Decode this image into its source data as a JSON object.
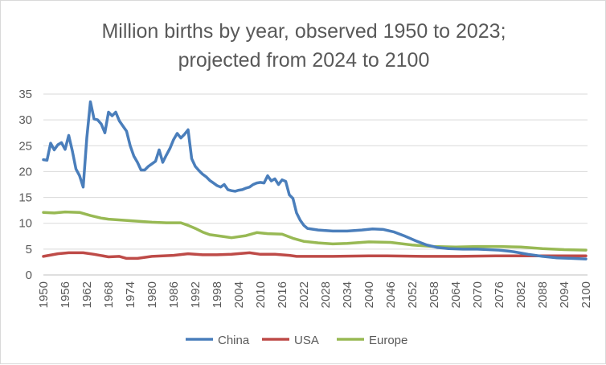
{
  "chart_data": {
    "type": "line",
    "title_lines": [
      "Million births by year, observed 1950 to 2023;",
      "projected from 2024 to 2100"
    ],
    "xlabel": "",
    "ylabel": "",
    "xlim": [
      1950,
      2100
    ],
    "ylim": [
      0,
      35
    ],
    "yticks": [
      0,
      5,
      10,
      15,
      20,
      25,
      30,
      35
    ],
    "xticks": [
      1950,
      1956,
      1962,
      1968,
      1974,
      1980,
      1986,
      1992,
      1998,
      2004,
      2010,
      2016,
      2022,
      2028,
      2034,
      2040,
      2046,
      2052,
      2058,
      2064,
      2070,
      2076,
      2082,
      2088,
      2094,
      2100
    ],
    "grid": "horizontal",
    "legend_position": "bottom",
    "series": [
      {
        "name": "China",
        "color": "#4a7ebb",
        "points": [
          [
            1950,
            22.3
          ],
          [
            1951,
            22.2
          ],
          [
            1952,
            25.5
          ],
          [
            1953,
            24.2
          ],
          [
            1954,
            25.2
          ],
          [
            1955,
            25.6
          ],
          [
            1956,
            24.3
          ],
          [
            1957,
            27.0
          ],
          [
            1958,
            24.0
          ],
          [
            1959,
            20.5
          ],
          [
            1960,
            19.2
          ],
          [
            1961,
            17.0
          ],
          [
            1962,
            26.5
          ],
          [
            1963,
            33.5
          ],
          [
            1964,
            30.2
          ],
          [
            1965,
            30.0
          ],
          [
            1966,
            29.2
          ],
          [
            1967,
            27.5
          ],
          [
            1968,
            31.5
          ],
          [
            1969,
            30.8
          ],
          [
            1970,
            31.5
          ],
          [
            1971,
            29.8
          ],
          [
            1972,
            28.8
          ],
          [
            1973,
            27.8
          ],
          [
            1974,
            25.0
          ],
          [
            1975,
            23.0
          ],
          [
            1976,
            21.8
          ],
          [
            1977,
            20.3
          ],
          [
            1978,
            20.3
          ],
          [
            1979,
            21.0
          ],
          [
            1980,
            21.5
          ],
          [
            1981,
            22.0
          ],
          [
            1982,
            24.2
          ],
          [
            1983,
            21.8
          ],
          [
            1984,
            23.2
          ],
          [
            1985,
            24.5
          ],
          [
            1986,
            26.2
          ],
          [
            1987,
            27.4
          ],
          [
            1988,
            26.5
          ],
          [
            1989,
            27.2
          ],
          [
            1990,
            28.1
          ],
          [
            1991,
            22.5
          ],
          [
            1992,
            21.0
          ],
          [
            1993,
            20.2
          ],
          [
            1994,
            19.5
          ],
          [
            1995,
            19.0
          ],
          [
            1996,
            18.3
          ],
          [
            1997,
            17.8
          ],
          [
            1998,
            17.3
          ],
          [
            1999,
            17.0
          ],
          [
            2000,
            17.5
          ],
          [
            2001,
            16.5
          ],
          [
            2002,
            16.3
          ],
          [
            2003,
            16.2
          ],
          [
            2004,
            16.4
          ],
          [
            2005,
            16.5
          ],
          [
            2006,
            16.8
          ],
          [
            2007,
            17.0
          ],
          [
            2008,
            17.5
          ],
          [
            2009,
            17.8
          ],
          [
            2010,
            17.9
          ],
          [
            2011,
            17.8
          ],
          [
            2012,
            19.2
          ],
          [
            2013,
            18.2
          ],
          [
            2014,
            18.6
          ],
          [
            2015,
            17.5
          ],
          [
            2016,
            18.4
          ],
          [
            2017,
            18.1
          ],
          [
            2018,
            15.5
          ],
          [
            2019,
            14.8
          ],
          [
            2020,
            12.0
          ],
          [
            2021,
            10.6
          ],
          [
            2022,
            9.6
          ],
          [
            2023,
            9.0
          ],
          [
            2026,
            8.7
          ],
          [
            2030,
            8.5
          ],
          [
            2034,
            8.5
          ],
          [
            2038,
            8.7
          ],
          [
            2041,
            8.9
          ],
          [
            2044,
            8.8
          ],
          [
            2047,
            8.3
          ],
          [
            2050,
            7.5
          ],
          [
            2053,
            6.6
          ],
          [
            2056,
            5.8
          ],
          [
            2059,
            5.3
          ],
          [
            2062,
            5.1
          ],
          [
            2066,
            5.0
          ],
          [
            2070,
            5.0
          ],
          [
            2076,
            4.8
          ],
          [
            2080,
            4.5
          ],
          [
            2084,
            4.0
          ],
          [
            2088,
            3.6
          ],
          [
            2092,
            3.3
          ],
          [
            2096,
            3.2
          ],
          [
            2100,
            3.1
          ]
        ]
      },
      {
        "name": "USA",
        "color": "#be4b48",
        "points": [
          [
            1950,
            3.6
          ],
          [
            1954,
            4.1
          ],
          [
            1957,
            4.3
          ],
          [
            1961,
            4.3
          ],
          [
            1964,
            4.0
          ],
          [
            1968,
            3.5
          ],
          [
            1971,
            3.6
          ],
          [
            1973,
            3.2
          ],
          [
            1976,
            3.2
          ],
          [
            1980,
            3.6
          ],
          [
            1986,
            3.8
          ],
          [
            1990,
            4.1
          ],
          [
            1994,
            3.9
          ],
          [
            1998,
            3.9
          ],
          [
            2002,
            4.0
          ],
          [
            2007,
            4.3
          ],
          [
            2010,
            4.0
          ],
          [
            2014,
            4.0
          ],
          [
            2018,
            3.8
          ],
          [
            2020,
            3.6
          ],
          [
            2023,
            3.6
          ],
          [
            2030,
            3.6
          ],
          [
            2040,
            3.7
          ],
          [
            2045,
            3.7
          ],
          [
            2055,
            3.6
          ],
          [
            2065,
            3.6
          ],
          [
            2075,
            3.7
          ],
          [
            2085,
            3.7
          ],
          [
            2095,
            3.7
          ],
          [
            2100,
            3.7
          ]
        ]
      },
      {
        "name": "Europe",
        "color": "#98b954",
        "points": [
          [
            1950,
            12.1
          ],
          [
            1953,
            12.0
          ],
          [
            1956,
            12.2
          ],
          [
            1960,
            12.1
          ],
          [
            1963,
            11.5
          ],
          [
            1966,
            11.0
          ],
          [
            1968,
            10.8
          ],
          [
            1972,
            10.6
          ],
          [
            1976,
            10.4
          ],
          [
            1980,
            10.2
          ],
          [
            1984,
            10.1
          ],
          [
            1988,
            10.1
          ],
          [
            1990,
            9.6
          ],
          [
            1992,
            9.0
          ],
          [
            1994,
            8.3
          ],
          [
            1996,
            7.8
          ],
          [
            1998,
            7.6
          ],
          [
            2000,
            7.4
          ],
          [
            2002,
            7.2
          ],
          [
            2006,
            7.6
          ],
          [
            2009,
            8.2
          ],
          [
            2012,
            8.0
          ],
          [
            2016,
            7.9
          ],
          [
            2019,
            7.1
          ],
          [
            2022,
            6.5
          ],
          [
            2026,
            6.2
          ],
          [
            2030,
            6.0
          ],
          [
            2034,
            6.1
          ],
          [
            2040,
            6.4
          ],
          [
            2046,
            6.3
          ],
          [
            2052,
            5.8
          ],
          [
            2058,
            5.5
          ],
          [
            2064,
            5.4
          ],
          [
            2070,
            5.5
          ],
          [
            2076,
            5.5
          ],
          [
            2082,
            5.4
          ],
          [
            2088,
            5.1
          ],
          [
            2094,
            4.9
          ],
          [
            2100,
            4.8
          ]
        ]
      }
    ]
  }
}
